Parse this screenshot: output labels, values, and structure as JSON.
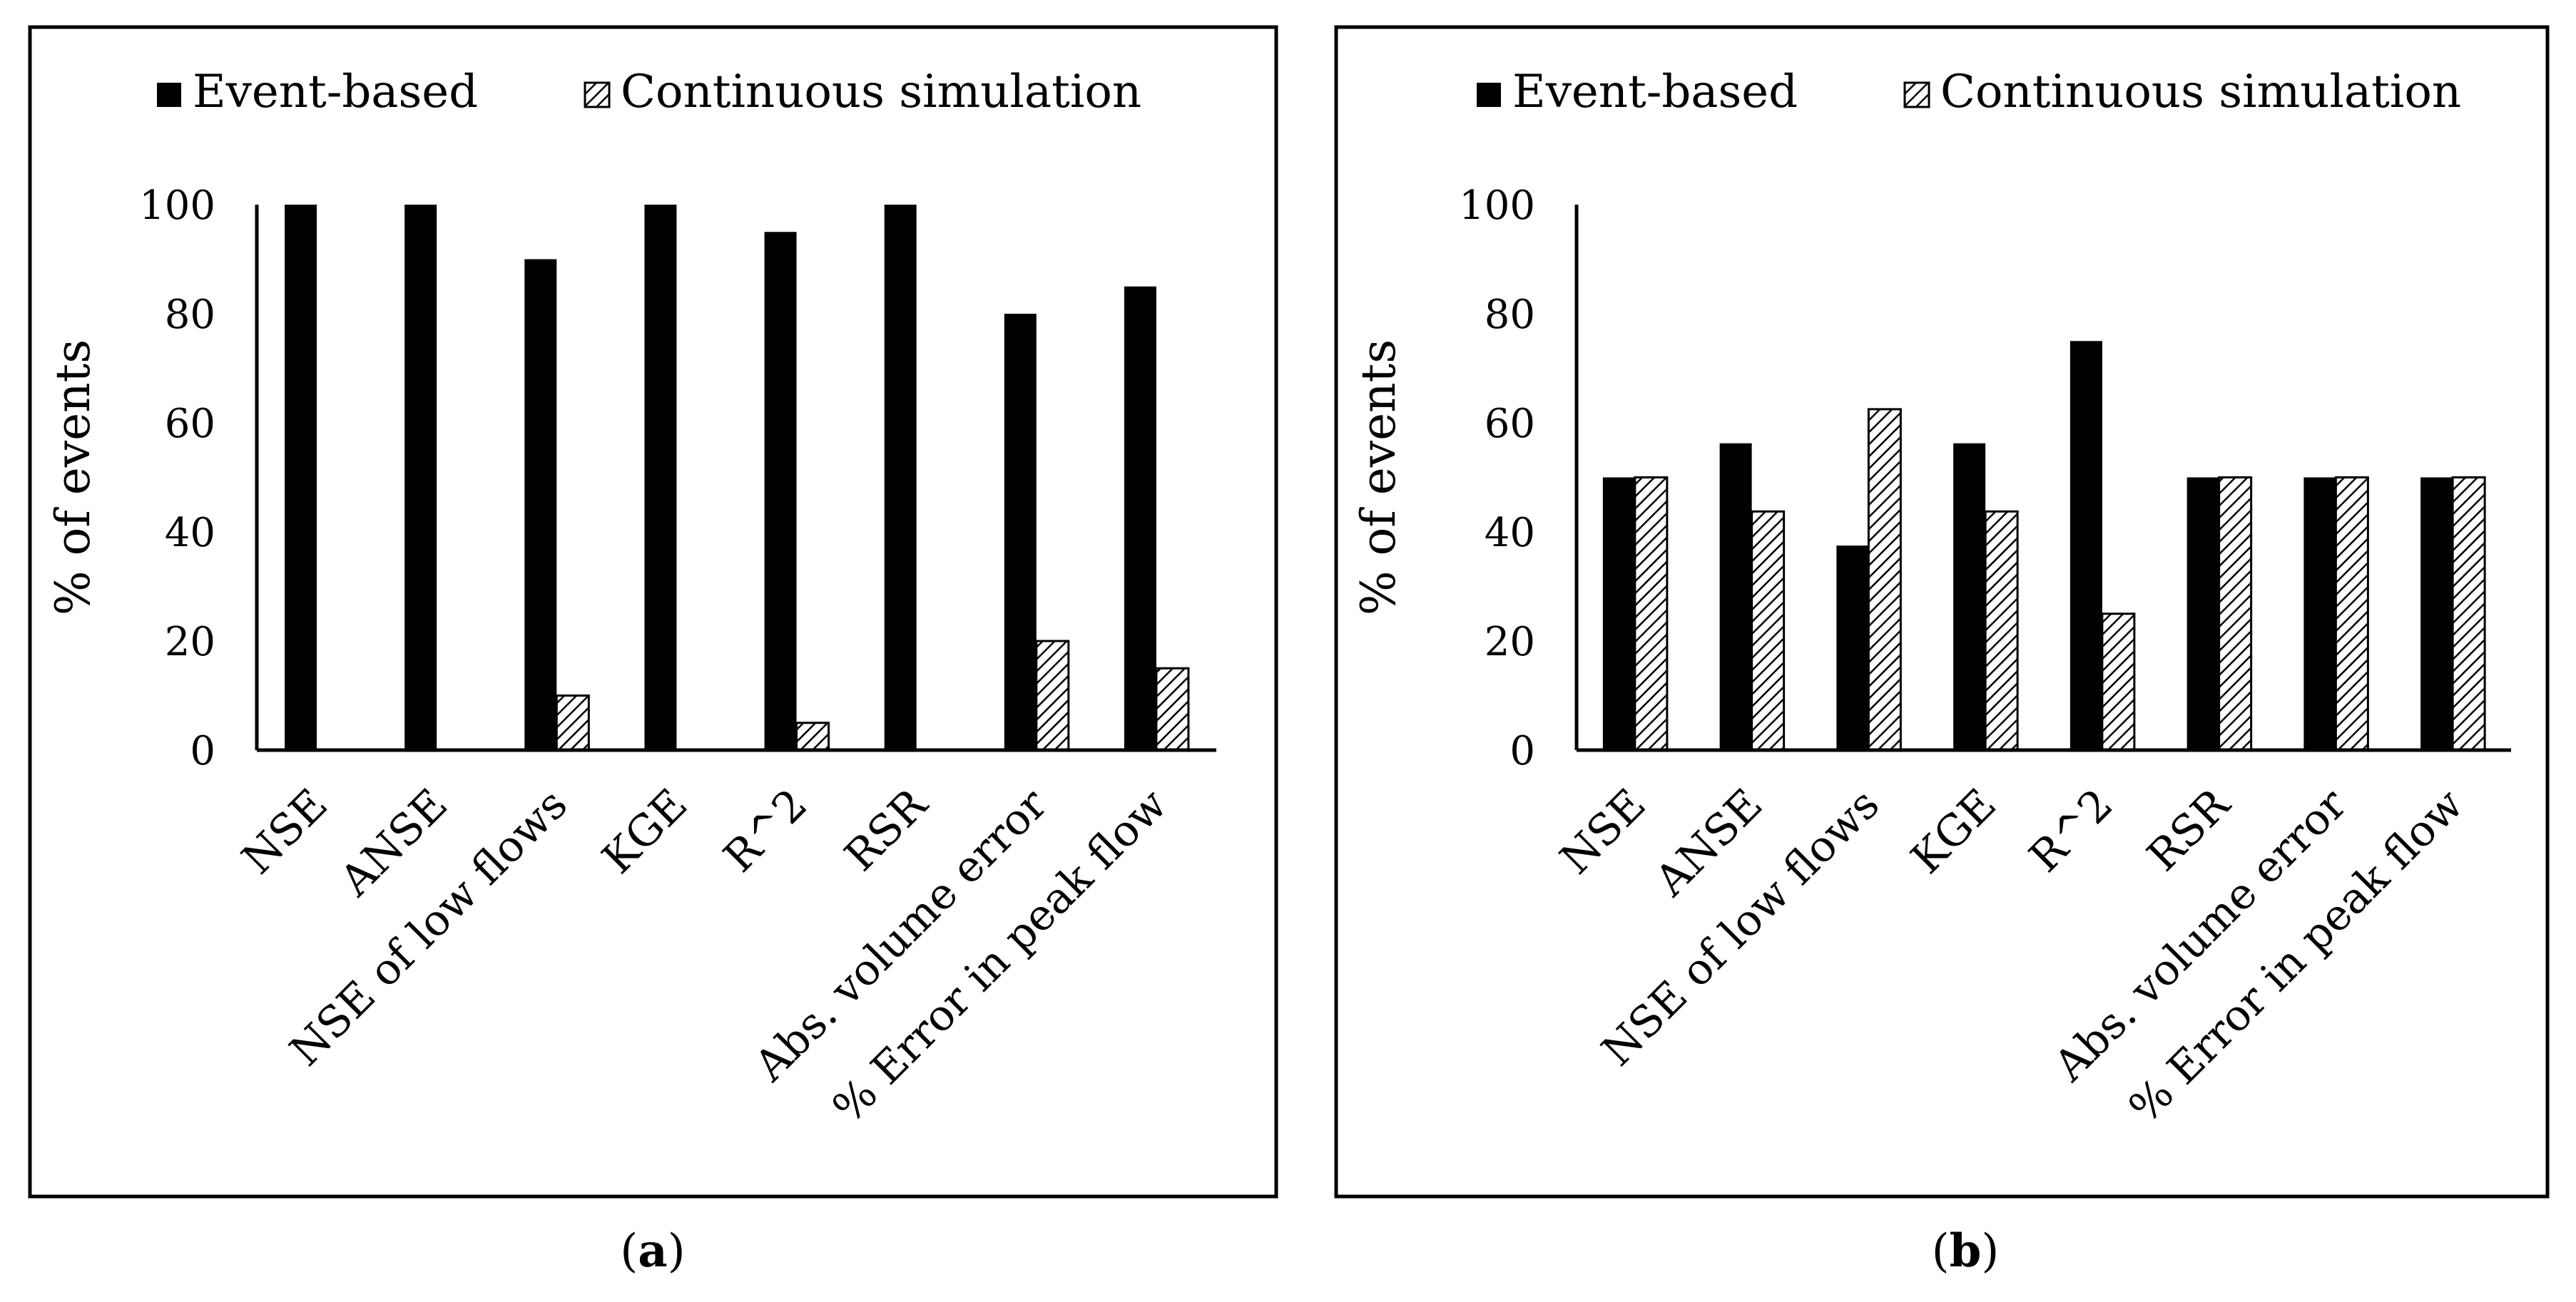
{
  "chart_data": [
    {
      "type": "bar",
      "panel_label_open": "(",
      "panel_label_letter": "a",
      "panel_label_close": ")",
      "ylabel": "% of events",
      "xlabel": "",
      "ylim": [
        0,
        100
      ],
      "yticks": [
        "0",
        "20",
        "40",
        "60",
        "80",
        "100"
      ],
      "legend_position": "top",
      "categories": [
        "NSE",
        "ANSE",
        "NSE of low flows",
        "KGE",
        "R^2",
        "RSR",
        "Abs. volume error",
        "% Error in peak flow"
      ],
      "series": [
        {
          "name": "Event-based",
          "values": [
            100,
            100,
            90,
            100,
            95,
            100,
            80,
            85
          ]
        },
        {
          "name": "Continuous simulation",
          "values": [
            0,
            0,
            10,
            0,
            5,
            0,
            20,
            15
          ]
        }
      ]
    },
    {
      "type": "bar",
      "panel_label_open": "(",
      "panel_label_letter": "b",
      "panel_label_close": ")",
      "ylabel": "% of events",
      "xlabel": "",
      "ylim": [
        0,
        100
      ],
      "yticks": [
        "0",
        "20",
        "40",
        "60",
        "80",
        "100"
      ],
      "legend_position": "top",
      "categories": [
        "NSE",
        "ANSE",
        "NSE of low flows",
        "KGE",
        "R^2",
        "RSR",
        "Abs. volume error",
        "% Error in peak flow"
      ],
      "series": [
        {
          "name": "Event-based",
          "values": [
            50,
            56.25,
            37.5,
            56.25,
            75,
            50,
            50,
            50
          ]
        },
        {
          "name": "Continuous simulation",
          "values": [
            50,
            43.75,
            62.5,
            43.75,
            25,
            50,
            50,
            50
          ]
        }
      ]
    }
  ]
}
